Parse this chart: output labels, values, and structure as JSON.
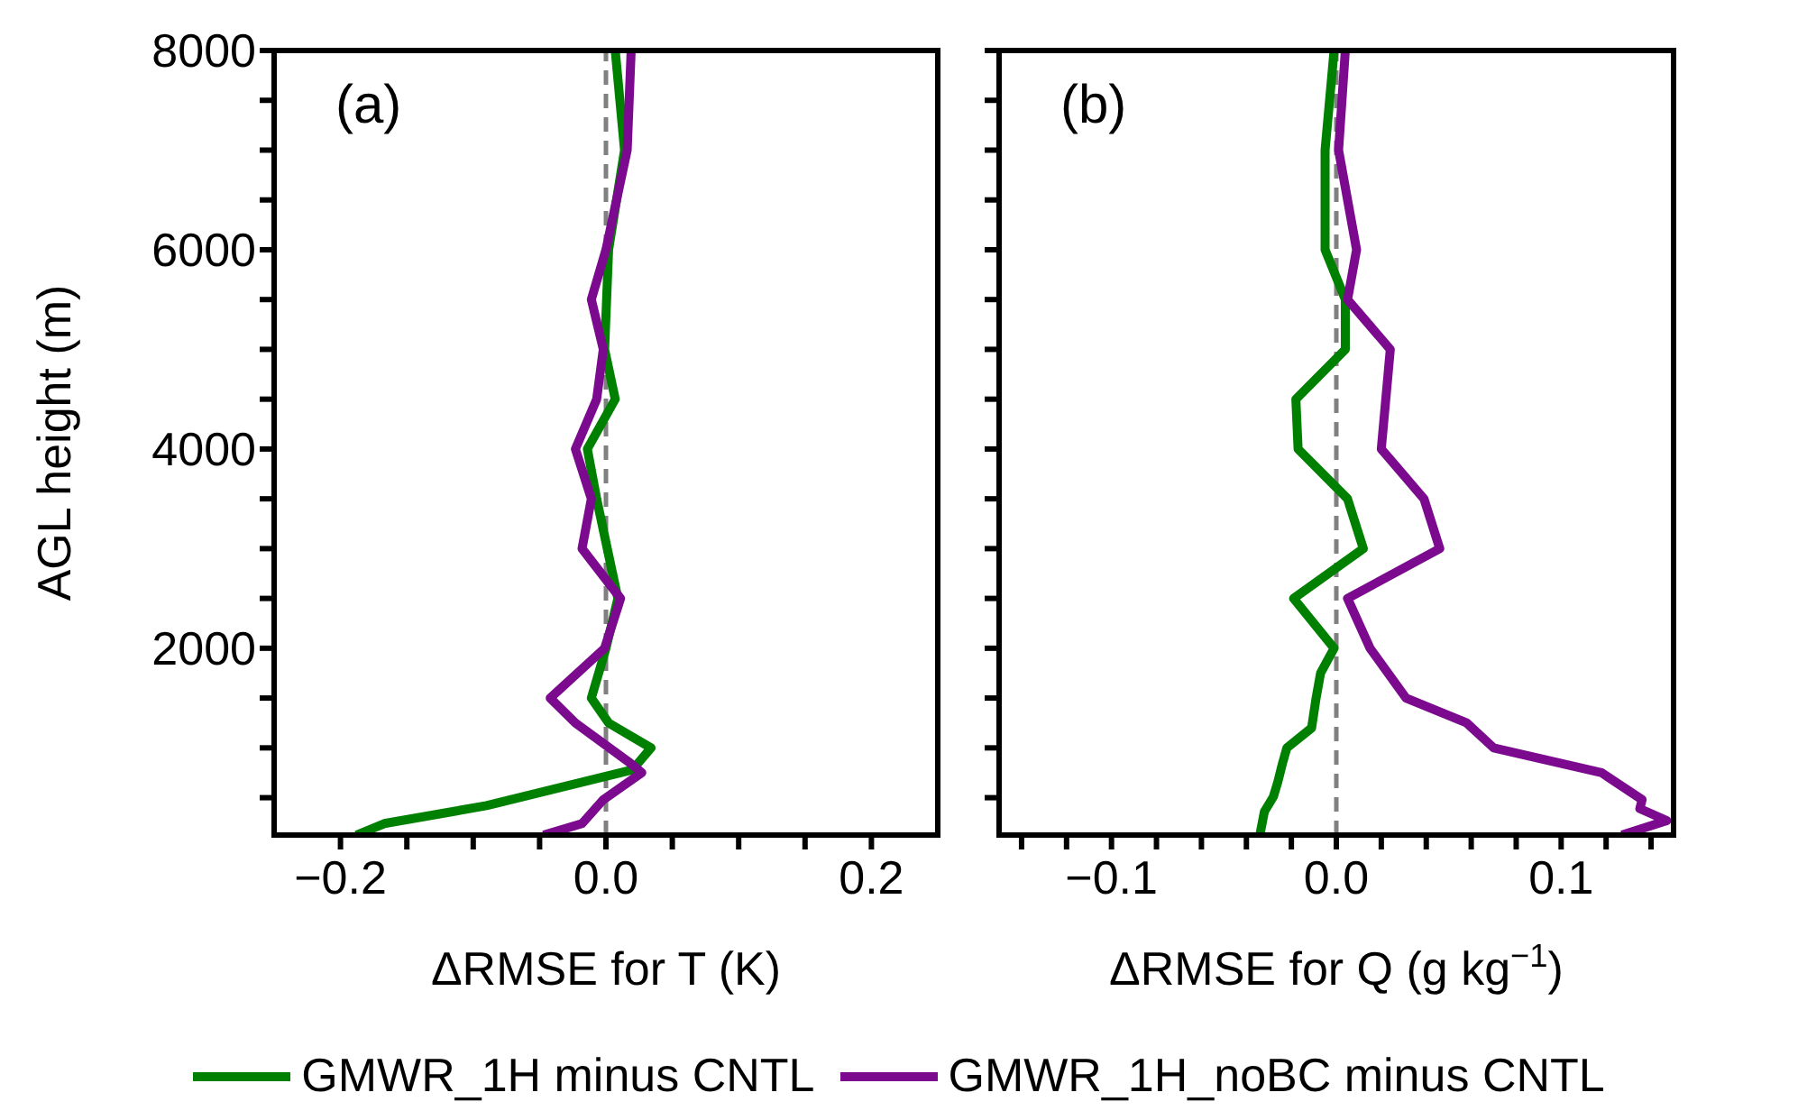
{
  "chart_data": [
    {
      "type": "line",
      "orientation": "horizontal",
      "xlabel": "ΔRMSE for T (K)",
      "ylabel": "AGL height (m)",
      "annotations": [
        "(a)"
      ],
      "legend": "bottom",
      "tick_labels": "xy",
      "xlim": [
        -0.25,
        0.25
      ],
      "xticks": [
        {
          "value": -0.2,
          "label": "−0.2"
        },
        {
          "value": -0.15,
          "label": null
        },
        {
          "value": -0.1,
          "label": null
        },
        {
          "value": -0.05,
          "label": null
        },
        {
          "value": 0,
          "label": "0.0"
        },
        {
          "value": 0.05,
          "label": null
        },
        {
          "value": 0.1,
          "label": null
        },
        {
          "value": 0.15,
          "label": null
        },
        {
          "value": 0.2,
          "label": "0.2"
        }
      ],
      "ylim": [
        125,
        8000
      ],
      "yticks": [
        {
          "value": 500,
          "label": null
        },
        {
          "value": 1000,
          "label": null
        },
        {
          "value": 1500,
          "label": null
        },
        2000,
        {
          "value": 2500,
          "label": null
        },
        {
          "value": 3000,
          "label": null
        },
        {
          "value": 3500,
          "label": null
        },
        4000,
        {
          "value": 4500,
          "label": null
        },
        {
          "value": 5000,
          "label": null
        },
        {
          "value": 5500,
          "label": null
        },
        6000,
        {
          "value": 6500,
          "label": null
        },
        {
          "value": 7000,
          "label": null
        },
        {
          "value": 7500,
          "label": null
        },
        8000
      ],
      "ref_lines": [
        {
          "axis": "x",
          "value": 0,
          "color": "#808080",
          "line_style": "dashed"
        }
      ],
      "series": [
        {
          "name": "GMWR_1H minus CNTL",
          "color": "#008000",
          "x": [
            125,
            240,
            420,
            780,
            1000,
            1250,
            1500,
            2000,
            2500,
            3500,
            4000,
            4500,
            5000,
            6000,
            7000,
            8000
          ],
          "values": [
            -0.188,
            -0.167,
            -0.09,
            0.02,
            0.034,
            0.002,
            -0.011,
            0,
            0.009,
            -0.007,
            -0.014,
            0.007,
            -0.001,
            0.002,
            0.014,
            0.007
          ]
        },
        {
          "name": "GMWR_1H_noBC minus CNTL",
          "color": "#7b0a8e",
          "x": [
            125,
            240,
            480,
            750,
            850,
            1250,
            1500,
            2000,
            2500,
            3000,
            3500,
            4000,
            4500,
            5000,
            5500,
            6000,
            7000,
            8000
          ],
          "values": [
            -0.047,
            -0.018,
            -0.002,
            0.027,
            0.018,
            -0.023,
            -0.042,
            -0.001,
            0.011,
            -0.018,
            -0.011,
            -0.023,
            -0.007,
            -0.002,
            -0.011,
            0,
            0.016,
            0.019
          ]
        }
      ]
    },
    {
      "type": "line",
      "orientation": "horizontal",
      "xlabel": "ΔRMSE for Q (g kg$^{−1}$)",
      "annotations": [
        "(b)"
      ],
      "tick_labels": "x",
      "xlim": [
        -0.15,
        0.15
      ],
      "xticks": [
        {
          "value": -0.14,
          "label": null
        },
        {
          "value": -0.12,
          "label": null
        },
        {
          "value": -0.1,
          "label": "−0.1"
        },
        {
          "value": -0.08,
          "label": null
        },
        {
          "value": -0.06,
          "label": null
        },
        {
          "value": -0.04,
          "label": null
        },
        {
          "value": -0.02,
          "label": null
        },
        {
          "value": 0,
          "label": "0.0"
        },
        {
          "value": 0.02,
          "label": null
        },
        {
          "value": 0.04,
          "label": null
        },
        {
          "value": 0.06,
          "label": null
        },
        {
          "value": 0.08,
          "label": null
        },
        {
          "value": 0.1,
          "label": "0.1"
        },
        {
          "value": 0.12,
          "label": null
        },
        {
          "value": 0.14,
          "label": null
        }
      ],
      "ylim": [
        125,
        8000
      ],
      "yticks": [
        {
          "value": 500,
          "label": null
        },
        {
          "value": 1000,
          "label": null
        },
        {
          "value": 1500,
          "label": null
        },
        2000,
        {
          "value": 2500,
          "label": null
        },
        {
          "value": 3000,
          "label": null
        },
        {
          "value": 3500,
          "label": null
        },
        4000,
        {
          "value": 4500,
          "label": null
        },
        {
          "value": 5000,
          "label": null
        },
        {
          "value": 5500,
          "label": null
        },
        6000,
        {
          "value": 6500,
          "label": null
        },
        {
          "value": 7000,
          "label": null
        },
        {
          "value": 7500,
          "label": null
        },
        8000
      ],
      "ref_lines": [
        {
          "axis": "x",
          "value": 0,
          "color": "#808080",
          "line_style": "dashed"
        }
      ],
      "series": [
        {
          "color": "#008000",
          "x": [
            125,
            360,
            510,
            660,
            840,
            1000,
            1200,
            1500,
            1750,
            2000,
            2500,
            3000,
            3500,
            4000,
            4500,
            5000,
            5500,
            6000,
            7000,
            8000
          ],
          "values": [
            -0.034,
            -0.032,
            -0.028,
            -0.026,
            -0.024,
            -0.022,
            -0.011,
            -0.009,
            -0.007,
            -0.001,
            -0.019,
            0.012,
            0.005,
            -0.017,
            -0.018,
            0.004,
            0.004,
            -0.005,
            -0.005,
            -0.001
          ]
        },
        {
          "color": "#7b0a8e",
          "x": [
            125,
            270,
            390,
            480,
            750,
            1000,
            1250,
            1500,
            2000,
            2500,
            3000,
            3500,
            4000,
            5000,
            5500,
            6000,
            7000,
            8000
          ],
          "values": [
            0.127,
            0.147,
            0.135,
            0.136,
            0.118,
            0.07,
            0.058,
            0.031,
            0.015,
            0.005,
            0.046,
            0.039,
            0.02,
            0.024,
            0.005,
            0.009,
            0.001,
            0.004
          ]
        }
      ]
    }
  ]
}
